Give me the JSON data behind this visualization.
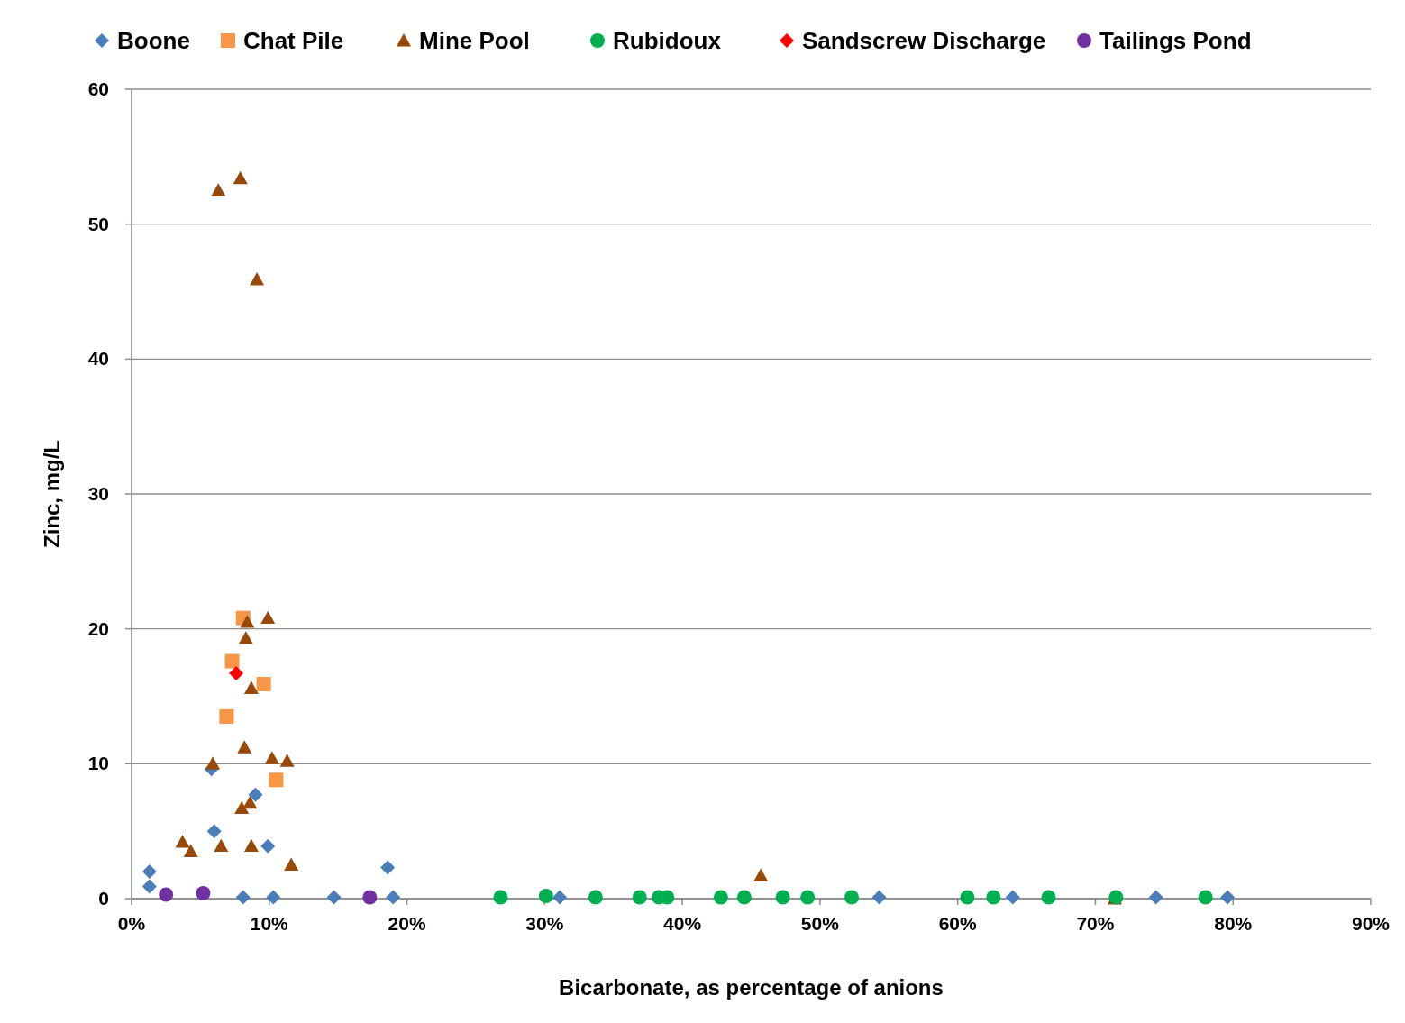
{
  "chart_data": {
    "type": "scatter",
    "xlabel": "Bicarbonate, as percentage of anions",
    "ylabel": "Zinc, mg/L",
    "xlim": [
      0,
      90
    ],
    "ylim": [
      0,
      60
    ],
    "xticks": [
      {
        "value": 0,
        "label": "0%"
      },
      {
        "value": 10,
        "label": "10%"
      },
      {
        "value": 20,
        "label": "20%"
      },
      {
        "value": 30,
        "label": "30%"
      },
      {
        "value": 40,
        "label": "40%"
      },
      {
        "value": 50,
        "label": "50%"
      },
      {
        "value": 60,
        "label": "60%"
      },
      {
        "value": 70,
        "label": "70%"
      },
      {
        "value": 80,
        "label": "80%"
      },
      {
        "value": 90,
        "label": "90%"
      }
    ],
    "yticks": [
      0,
      10,
      20,
      30,
      40,
      50,
      60
    ],
    "grid": "y",
    "legend": "top",
    "series": [
      {
        "name": "Boone",
        "color": "#4a7ebb",
        "marker": "diamond",
        "x": [
          1.3,
          1.3,
          5.8,
          6.0,
          9.0,
          9.9,
          8.1,
          10.3,
          14.7,
          18.6,
          19.0,
          31.1,
          54.3,
          64.0,
          74.4,
          79.6
        ],
        "values": [
          2.0,
          0.9,
          9.6,
          5.0,
          7.7,
          3.9,
          0.1,
          0.1,
          0.1,
          2.3,
          0.1,
          0.1,
          0.1,
          0.1,
          0.1,
          0.1
        ]
      },
      {
        "name": "Chat Pile",
        "color": "#f79646",
        "marker": "square",
        "x": [
          8.1,
          7.3,
          9.6,
          6.9,
          10.5
        ],
        "values": [
          20.8,
          17.6,
          15.9,
          13.5,
          8.8
        ]
      },
      {
        "name": "Mine Pool",
        "color": "#984807",
        "marker": "triangle",
        "x": [
          6.3,
          7.9,
          9.1,
          9.9,
          8.4,
          8.3,
          8.7,
          8.2,
          5.9,
          10.2,
          11.3,
          8.0,
          8.6,
          3.7,
          4.3,
          6.5,
          8.7,
          11.6,
          45.7,
          71.4
        ],
        "values": [
          52.5,
          53.4,
          45.9,
          20.8,
          20.5,
          19.3,
          15.6,
          11.2,
          10.0,
          10.4,
          10.2,
          6.7,
          7.1,
          4.2,
          3.5,
          3.9,
          3.9,
          2.5,
          1.7,
          0
        ]
      },
      {
        "name": "Rubidoux",
        "color": "#00b050",
        "marker": "circle",
        "x": [
          26.8,
          30.1,
          33.7,
          36.9,
          38.3,
          38.9,
          42.8,
          44.5,
          47.3,
          49.1,
          52.3,
          60.7,
          62.6,
          66.6,
          71.5,
          78.0
        ],
        "values": [
          0.1,
          0.2,
          0.1,
          0.1,
          0.1,
          0.1,
          0.1,
          0.1,
          0.1,
          0.1,
          0.1,
          0.1,
          0.1,
          0.1,
          0.1,
          0.1
        ]
      },
      {
        "name": "Sandscrew Discharge",
        "color": "#ff0000",
        "marker": "diamond",
        "x": [
          7.6
        ],
        "values": [
          16.7
        ]
      },
      {
        "name": "Tailings Pond",
        "color": "#7030a0",
        "marker": "circle",
        "x": [
          2.5,
          5.2,
          17.3
        ],
        "values": [
          0.3,
          0.4,
          0.1
        ]
      }
    ]
  }
}
